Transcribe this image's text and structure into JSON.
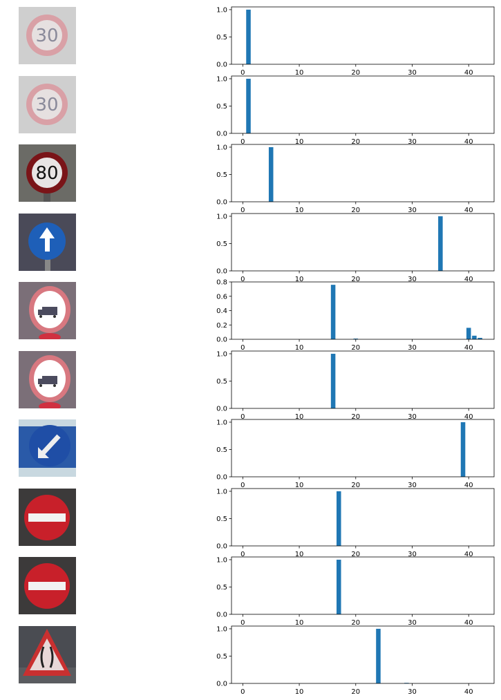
{
  "colors": {
    "bar": "#1f77b4",
    "axis": "#000000"
  },
  "images": [
    {
      "icon": "speed-limit-30-sign-icon",
      "text": "30"
    },
    {
      "icon": "speed-limit-30-sign-icon",
      "text": "30"
    },
    {
      "icon": "speed-limit-80-sign-icon",
      "text": "80"
    },
    {
      "icon": "ahead-only-sign-icon"
    },
    {
      "icon": "no-trucks-sign-icon"
    },
    {
      "icon": "no-trucks-sign-icon"
    },
    {
      "icon": "keep-left-sign-icon"
    },
    {
      "icon": "no-entry-sign-icon"
    },
    {
      "icon": "no-entry-sign-icon"
    },
    {
      "icon": "road-narrows-sign-icon"
    }
  ],
  "chart_data": [
    {
      "type": "bar",
      "x": [
        1
      ],
      "values": [
        1.0
      ],
      "xlim": [
        -2,
        44.5
      ],
      "ylim": [
        0,
        1.05
      ],
      "xticks": [
        0,
        10,
        20,
        30,
        40
      ],
      "yticks": [
        0.0,
        0.5,
        1.0
      ],
      "ytick_labels": [
        "0.0",
        "0.5",
        "1.0"
      ]
    },
    {
      "type": "bar",
      "x": [
        1
      ],
      "values": [
        1.0
      ],
      "xlim": [
        -2,
        44.5
      ],
      "ylim": [
        0,
        1.05
      ],
      "xticks": [
        0,
        10,
        20,
        30,
        40
      ],
      "yticks": [
        0.0,
        0.5,
        1.0
      ],
      "ytick_labels": [
        "0.0",
        "0.5",
        "1.0"
      ]
    },
    {
      "type": "bar",
      "x": [
        5
      ],
      "values": [
        1.0
      ],
      "xlim": [
        -2,
        44.5
      ],
      "ylim": [
        0,
        1.05
      ],
      "xticks": [
        0,
        10,
        20,
        30,
        40
      ],
      "yticks": [
        0.0,
        0.5,
        1.0
      ],
      "ytick_labels": [
        "0.0",
        "0.5",
        "1.0"
      ]
    },
    {
      "type": "bar",
      "x": [
        35
      ],
      "values": [
        1.0
      ],
      "xlim": [
        -2,
        44.5
      ],
      "ylim": [
        0,
        1.05
      ],
      "xticks": [
        0,
        10,
        20,
        30,
        40
      ],
      "yticks": [
        0.0,
        0.5,
        1.0
      ],
      "ytick_labels": [
        "0.0",
        "0.5",
        "1.0"
      ]
    },
    {
      "type": "bar",
      "x": [
        16,
        20,
        40,
        41,
        42
      ],
      "values": [
        0.76,
        0.01,
        0.16,
        0.05,
        0.02
      ],
      "xlim": [
        -2,
        44.5
      ],
      "ylim": [
        0,
        0.8
      ],
      "xticks": [
        0,
        10,
        20,
        30,
        40
      ],
      "yticks": [
        0.0,
        0.2,
        0.4,
        0.6,
        0.8
      ],
      "ytick_labels": [
        "0.0",
        "0.2",
        "0.4",
        "0.6",
        "0.8"
      ]
    },
    {
      "type": "bar",
      "x": [
        16
      ],
      "values": [
        1.0
      ],
      "xlim": [
        -2,
        44.5
      ],
      "ylim": [
        0,
        1.05
      ],
      "xticks": [
        0,
        10,
        20,
        30,
        40
      ],
      "yticks": [
        0.0,
        0.5,
        1.0
      ],
      "ytick_labels": [
        "0.0",
        "0.5",
        "1.0"
      ]
    },
    {
      "type": "bar",
      "x": [
        39
      ],
      "values": [
        1.0
      ],
      "xlim": [
        -2,
        44.5
      ],
      "ylim": [
        0,
        1.05
      ],
      "xticks": [
        0,
        10,
        20,
        30,
        40
      ],
      "yticks": [
        0.0,
        0.5,
        1.0
      ],
      "ytick_labels": [
        "0.0",
        "0.5",
        "1.0"
      ]
    },
    {
      "type": "bar",
      "x": [
        17
      ],
      "values": [
        1.0
      ],
      "xlim": [
        -2,
        44.5
      ],
      "ylim": [
        0,
        1.05
      ],
      "xticks": [
        0,
        10,
        20,
        30,
        40
      ],
      "yticks": [
        0.0,
        0.5,
        1.0
      ],
      "ytick_labels": [
        "0.0",
        "0.5",
        "1.0"
      ]
    },
    {
      "type": "bar",
      "x": [
        17
      ],
      "values": [
        1.0
      ],
      "xlim": [
        -2,
        44.5
      ],
      "ylim": [
        0,
        1.05
      ],
      "xticks": [
        0,
        10,
        20,
        30,
        40
      ],
      "yticks": [
        0.0,
        0.5,
        1.0
      ],
      "ytick_labels": [
        "0.0",
        "0.5",
        "1.0"
      ]
    },
    {
      "type": "bar",
      "x": [
        24,
        29
      ],
      "values": [
        1.0,
        0.01
      ],
      "xlim": [
        -2,
        44.5
      ],
      "ylim": [
        0,
        1.05
      ],
      "xticks": [
        0,
        10,
        20,
        30,
        40
      ],
      "yticks": [
        0.0,
        0.5,
        1.0
      ],
      "ytick_labels": [
        "0.0",
        "0.5",
        "1.0"
      ]
    }
  ]
}
